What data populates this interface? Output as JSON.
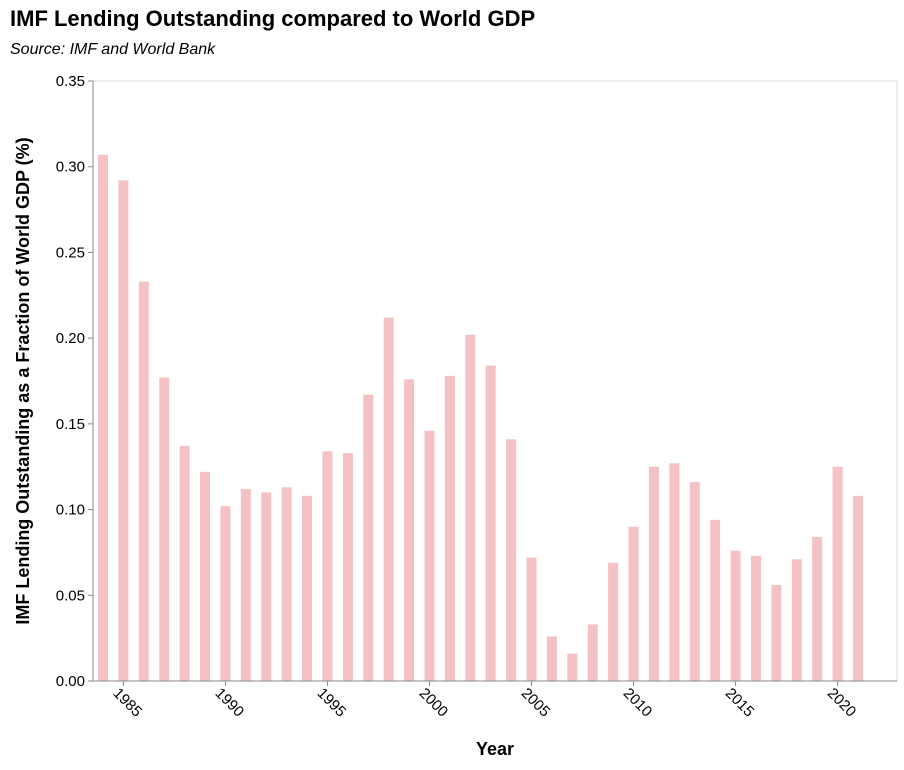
{
  "chart_data": {
    "type": "bar",
    "title": "IMF Lending Outstanding compared to World GDP",
    "subtitle": "Source: IMF and World Bank",
    "xlabel": "Year",
    "ylabel": "IMF Lending Outstanding as a Fraction of World GDP (%)",
    "ylim": [
      0,
      0.35
    ],
    "y_ticks": [
      "0.00",
      "0.05",
      "0.10",
      "0.15",
      "0.20",
      "0.25",
      "0.30",
      "0.35"
    ],
    "x_tick_labels": [
      "1985",
      "1990",
      "1995",
      "2000",
      "2005",
      "2010",
      "2015",
      "2020"
    ],
    "grid": false,
    "bar_color": "#f4c2c5",
    "x": [
      1984,
      1985,
      1986,
      1987,
      1988,
      1989,
      1990,
      1991,
      1992,
      1993,
      1994,
      1995,
      1996,
      1997,
      1998,
      1999,
      2000,
      2001,
      2002,
      2003,
      2004,
      2005,
      2006,
      2007,
      2008,
      2009,
      2010,
      2011,
      2012,
      2013,
      2014,
      2015,
      2016,
      2017,
      2018,
      2019,
      2020,
      2021
    ],
    "values": [
      0.307,
      0.292,
      0.233,
      0.177,
      0.137,
      0.122,
      0.102,
      0.112,
      0.11,
      0.113,
      0.108,
      0.134,
      0.133,
      0.167,
      0.212,
      0.176,
      0.146,
      0.178,
      0.202,
      0.184,
      0.141,
      0.072,
      0.026,
      0.016,
      0.033,
      0.069,
      0.09,
      0.125,
      0.127,
      0.116,
      0.094,
      0.076,
      0.073,
      0.056,
      0.071,
      0.084,
      0.125,
      0.108
    ]
  }
}
